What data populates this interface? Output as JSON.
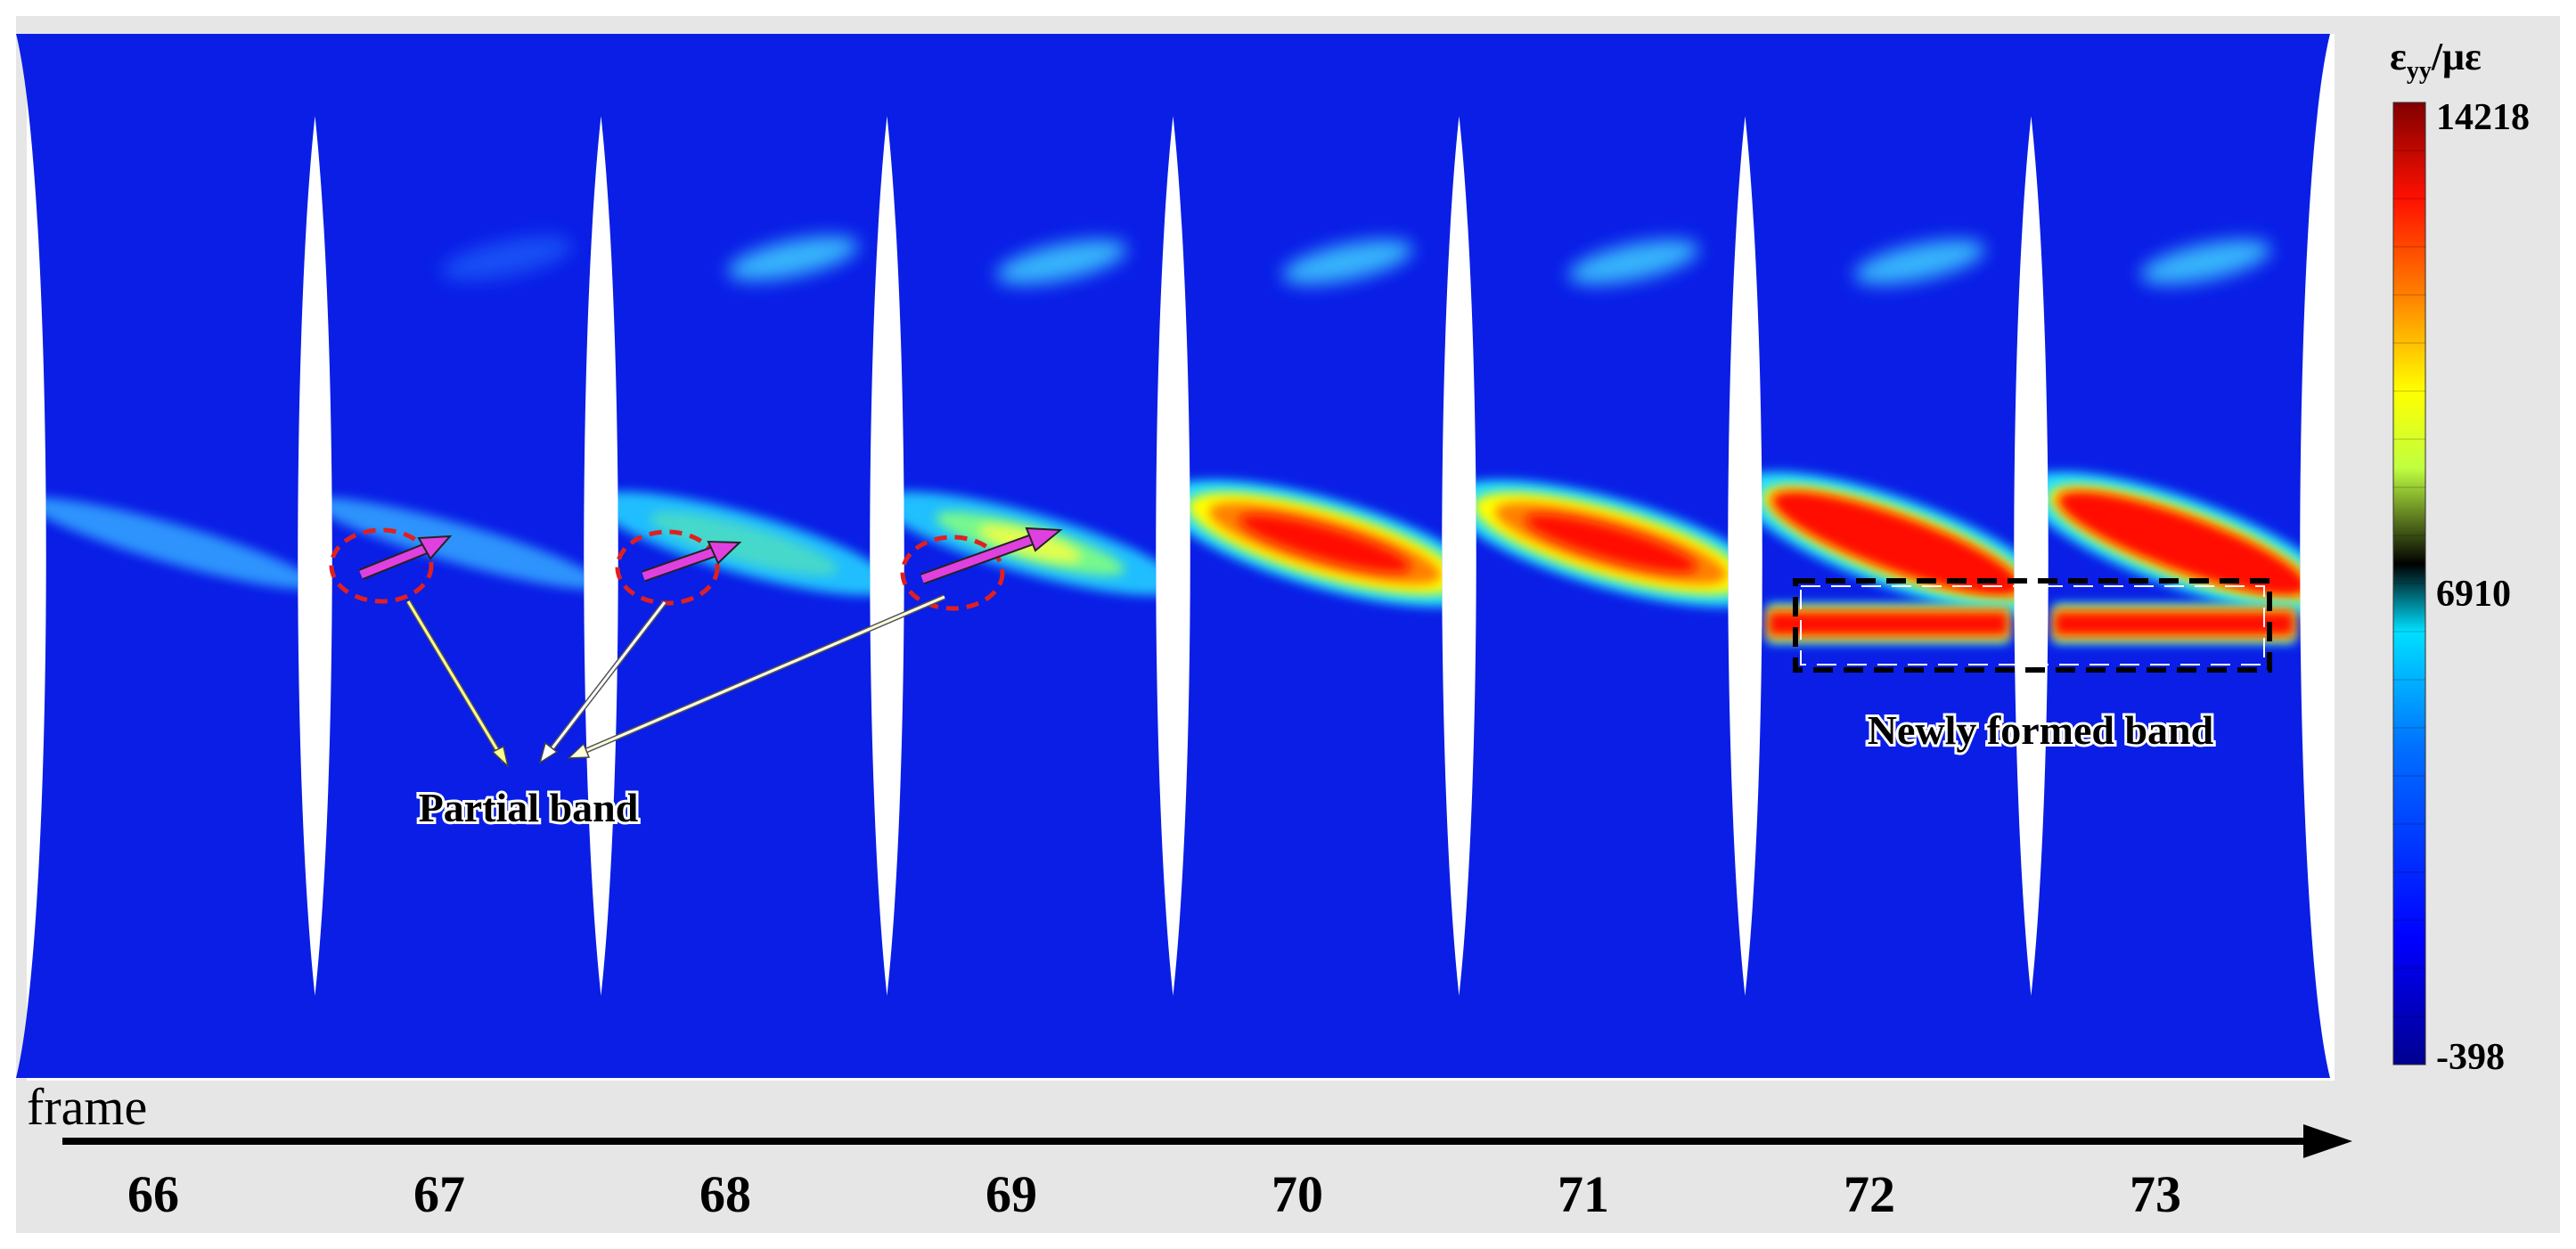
{
  "frame_axis": {
    "label": "frame",
    "frames": [
      "66",
      "67",
      "68",
      "69",
      "70",
      "71",
      "72",
      "73"
    ]
  },
  "colorbar": {
    "title_symbol": "ε",
    "title_subscript": "yy",
    "title_unit": "/με",
    "max_label": "14218",
    "mid_label": "6910",
    "min_label": "-398",
    "colors": [
      "#00008f",
      "#0000ff",
      "#0080ff",
      "#00ffff",
      "#80ff80",
      "#ffff00",
      "#ff8000",
      "#ff0000",
      "#800000"
    ]
  },
  "annotations": {
    "partial_band": "Partial band",
    "newly_formed_band": "Newly formed band"
  },
  "colors": {
    "background_strain": "#0a1ee6",
    "arrow_magenta": "#e040e0",
    "circle_red": "#e02020",
    "panel_gray": "#e6e6e6"
  }
}
